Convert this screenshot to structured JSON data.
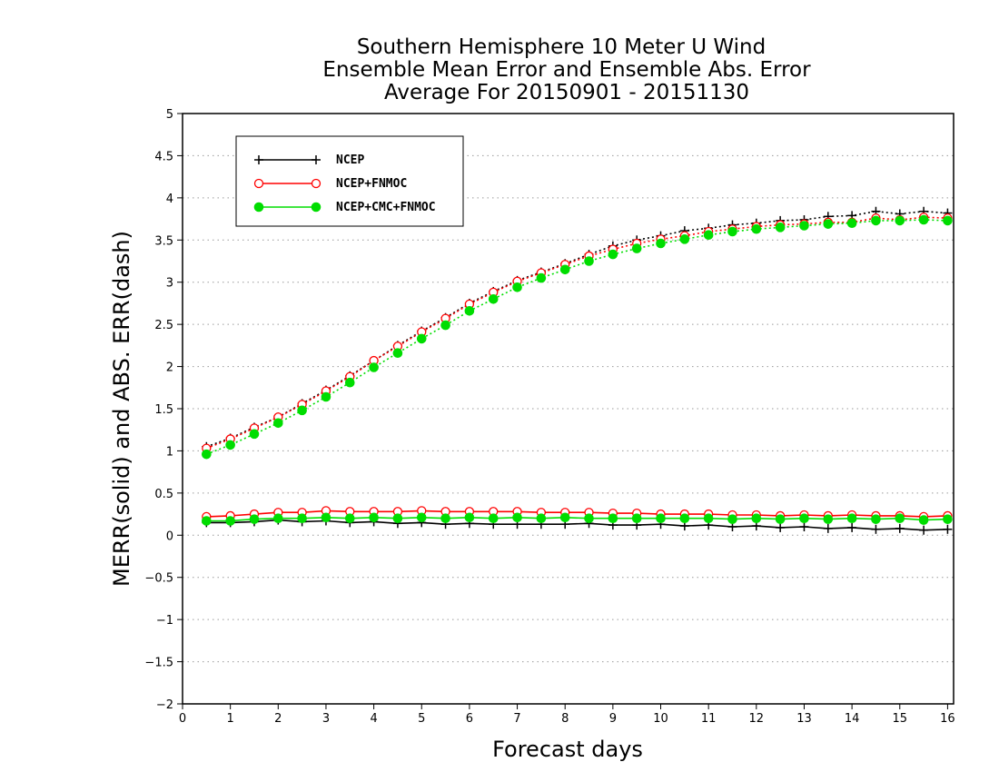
{
  "chart_data": {
    "type": "line",
    "title": [
      "Southern Hemisphere 10 Meter U Wind",
      "Ensemble Mean Error and Ensemble Abs. Error",
      "Average For 20150901 - 20151130"
    ],
    "xlabel": "Forecast days",
    "ylabel": "MERR(solid) and ABS. ERR(dash)",
    "xlim": [
      0,
      16.125
    ],
    "ylim": [
      -2,
      5
    ],
    "xticks": [
      "0",
      "1",
      "2",
      "3",
      "4",
      "5",
      "6",
      "7",
      "8",
      "9",
      "10",
      "11",
      "12",
      "13",
      "14",
      "15",
      "16"
    ],
    "yticks": [
      "5",
      "4.5",
      "4",
      "3.5",
      "3",
      "2.5",
      "2",
      "1.5",
      "1",
      "0.5",
      "0",
      "-0.5",
      "-1",
      "-1.5",
      "-2"
    ],
    "grid": true,
    "legend_position": "top-left",
    "x": [
      0.5,
      1,
      1.5,
      2,
      2.5,
      3,
      3.5,
      4,
      4.5,
      5,
      5.5,
      6,
      6.5,
      7,
      7.5,
      8,
      8.5,
      9,
      9.5,
      10,
      10.5,
      11,
      11.5,
      12,
      12.5,
      13,
      13.5,
      14,
      14.5,
      15,
      15.5,
      16
    ],
    "series": [
      {
        "name": "NCEP",
        "color": "#000000",
        "marker": "plus",
        "merr": [
          0.15,
          0.15,
          0.16,
          0.18,
          0.16,
          0.17,
          0.15,
          0.16,
          0.14,
          0.15,
          0.13,
          0.14,
          0.13,
          0.13,
          0.13,
          0.13,
          0.14,
          0.12,
          0.12,
          0.13,
          0.11,
          0.12,
          0.1,
          0.11,
          0.09,
          0.1,
          0.08,
          0.09,
          0.07,
          0.08,
          0.06,
          0.07
        ],
        "abs_err": [
          1.05,
          1.15,
          1.28,
          1.4,
          1.56,
          1.72,
          1.89,
          2.07,
          2.25,
          2.42,
          2.58,
          2.75,
          2.89,
          3.02,
          3.12,
          3.22,
          3.33,
          3.43,
          3.5,
          3.55,
          3.61,
          3.64,
          3.68,
          3.7,
          3.73,
          3.74,
          3.78,
          3.79,
          3.84,
          3.81,
          3.84,
          3.82
        ]
      },
      {
        "name": "NCEP+FNMOC",
        "color": "#ff0000",
        "marker": "open-circle",
        "merr": [
          0.22,
          0.23,
          0.25,
          0.27,
          0.27,
          0.29,
          0.28,
          0.28,
          0.28,
          0.29,
          0.28,
          0.28,
          0.28,
          0.28,
          0.27,
          0.27,
          0.27,
          0.26,
          0.26,
          0.25,
          0.25,
          0.25,
          0.24,
          0.24,
          0.23,
          0.24,
          0.23,
          0.24,
          0.23,
          0.23,
          0.22,
          0.23
        ],
        "abs_err": [
          1.03,
          1.14,
          1.27,
          1.4,
          1.55,
          1.71,
          1.88,
          2.07,
          2.24,
          2.41,
          2.57,
          2.74,
          2.88,
          3.01,
          3.11,
          3.21,
          3.31,
          3.39,
          3.46,
          3.51,
          3.55,
          3.6,
          3.63,
          3.66,
          3.68,
          3.69,
          3.71,
          3.71,
          3.76,
          3.74,
          3.77,
          3.76
        ]
      },
      {
        "name": "NCEP+CMC+FNMOC",
        "color": "#00dd00",
        "marker": "filled-circle",
        "merr": [
          0.17,
          0.17,
          0.19,
          0.2,
          0.2,
          0.21,
          0.2,
          0.21,
          0.2,
          0.21,
          0.2,
          0.21,
          0.2,
          0.21,
          0.2,
          0.21,
          0.2,
          0.2,
          0.2,
          0.2,
          0.2,
          0.2,
          0.19,
          0.2,
          0.19,
          0.2,
          0.19,
          0.2,
          0.19,
          0.2,
          0.18,
          0.19
        ],
        "abs_err": [
          0.96,
          1.07,
          1.2,
          1.33,
          1.48,
          1.64,
          1.81,
          1.99,
          2.16,
          2.33,
          2.49,
          2.66,
          2.8,
          2.94,
          3.05,
          3.15,
          3.25,
          3.33,
          3.4,
          3.46,
          3.51,
          3.56,
          3.6,
          3.63,
          3.65,
          3.67,
          3.69,
          3.7,
          3.73,
          3.73,
          3.74,
          3.73
        ]
      }
    ]
  }
}
